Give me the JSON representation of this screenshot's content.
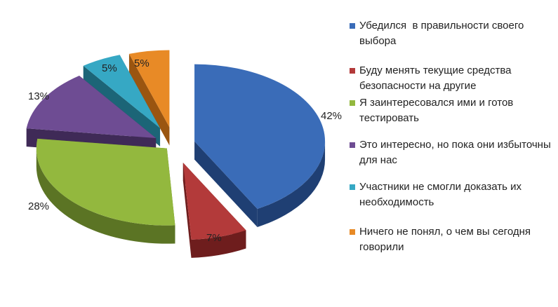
{
  "chart_data": {
    "type": "pie",
    "title": "",
    "legend_position": "right",
    "slices": [
      {
        "label": "Убедился  в правильности своего выбора",
        "value": 42,
        "value_label": "42%",
        "color": "#3a6cb8",
        "side_color": "#1f3f73"
      },
      {
        "label": "Буду менять текущие средства безопасности на другие",
        "value": 7,
        "value_label": "7%",
        "color": "#b33a3a",
        "side_color": "#6e1d1d"
      },
      {
        "label": "Я заинтересовался ими и готов тестировать",
        "value": 28,
        "value_label": "28%",
        "color": "#93b83e",
        "side_color": "#5b7424"
      },
      {
        "label": "Это интересно, но пока они избыточны для нас",
        "value": 13,
        "value_label": "13%",
        "color": "#6e4c93",
        "side_color": "#3f2a57"
      },
      {
        "label": "Участники не смогли доказать их необходимость",
        "value": 5,
        "value_label": "5%",
        "color": "#36a8c4",
        "side_color": "#1c6577"
      },
      {
        "label": "Ничего не понял, о чем вы сегодня говорили",
        "value": 5,
        "value_label": "5%",
        "color": "#e88a26",
        "side_color": "#9a5510"
      }
    ]
  }
}
